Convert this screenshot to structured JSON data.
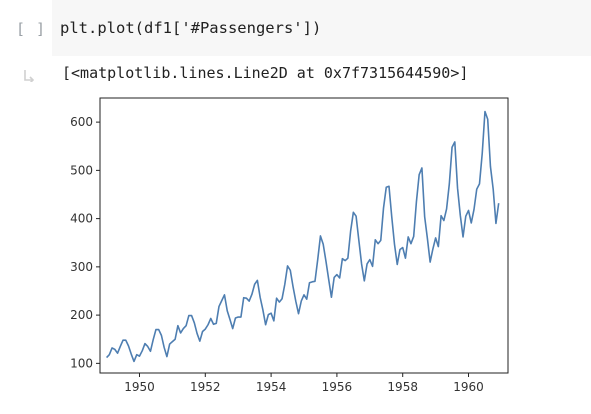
{
  "cell": {
    "gutter": "[ ]",
    "code": "plt.plot(df1['#Passengers'])"
  },
  "output": {
    "icon": "output-arrow-icon",
    "text": "[<matplotlib.lines.Line2D at 0x7f7315644590>]"
  },
  "chart_data": {
    "type": "line",
    "title": "",
    "xlabel": "",
    "ylabel": "",
    "xlim": [
      1948.8,
      1961.2
    ],
    "ylim": [
      80,
      650
    ],
    "xticks": [
      1950,
      1952,
      1954,
      1956,
      1958,
      1960
    ],
    "yticks": [
      100,
      200,
      300,
      400,
      500,
      600
    ],
    "grid": false,
    "series": [
      {
        "color": "#4e7eb1",
        "x_start": 1949.0,
        "x_step": 0.0833333,
        "values": [
          112,
          118,
          132,
          129,
          121,
          135,
          148,
          148,
          136,
          119,
          104,
          118,
          115,
          126,
          141,
          135,
          125,
          149,
          170,
          170,
          158,
          133,
          114,
          140,
          145,
          150,
          178,
          163,
          172,
          178,
          199,
          199,
          184,
          162,
          146,
          166,
          171,
          180,
          193,
          181,
          183,
          218,
          230,
          242,
          209,
          191,
          172,
          194,
          196,
          196,
          236,
          235,
          229,
          243,
          264,
          272,
          237,
          211,
          180,
          201,
          204,
          188,
          235,
          227,
          234,
          264,
          302,
          293,
          259,
          229,
          203,
          229,
          242,
          233,
          267,
          269,
          270,
          315,
          364,
          347,
          312,
          274,
          237,
          278,
          284,
          277,
          317,
          313,
          318,
          374,
          413,
          405,
          355,
          306,
          271,
          306,
          315,
          301,
          356,
          348,
          355,
          422,
          465,
          467,
          404,
          347,
          305,
          336,
          340,
          318,
          362,
          348,
          363,
          435,
          491,
          505,
          404,
          359,
          310,
          337,
          360,
          342,
          406,
          396,
          420,
          472,
          548,
          559,
          463,
          407,
          362,
          405,
          417,
          391,
          419,
          461,
          472,
          535,
          622,
          606,
          508,
          461,
          390,
          432
        ]
      }
    ]
  }
}
